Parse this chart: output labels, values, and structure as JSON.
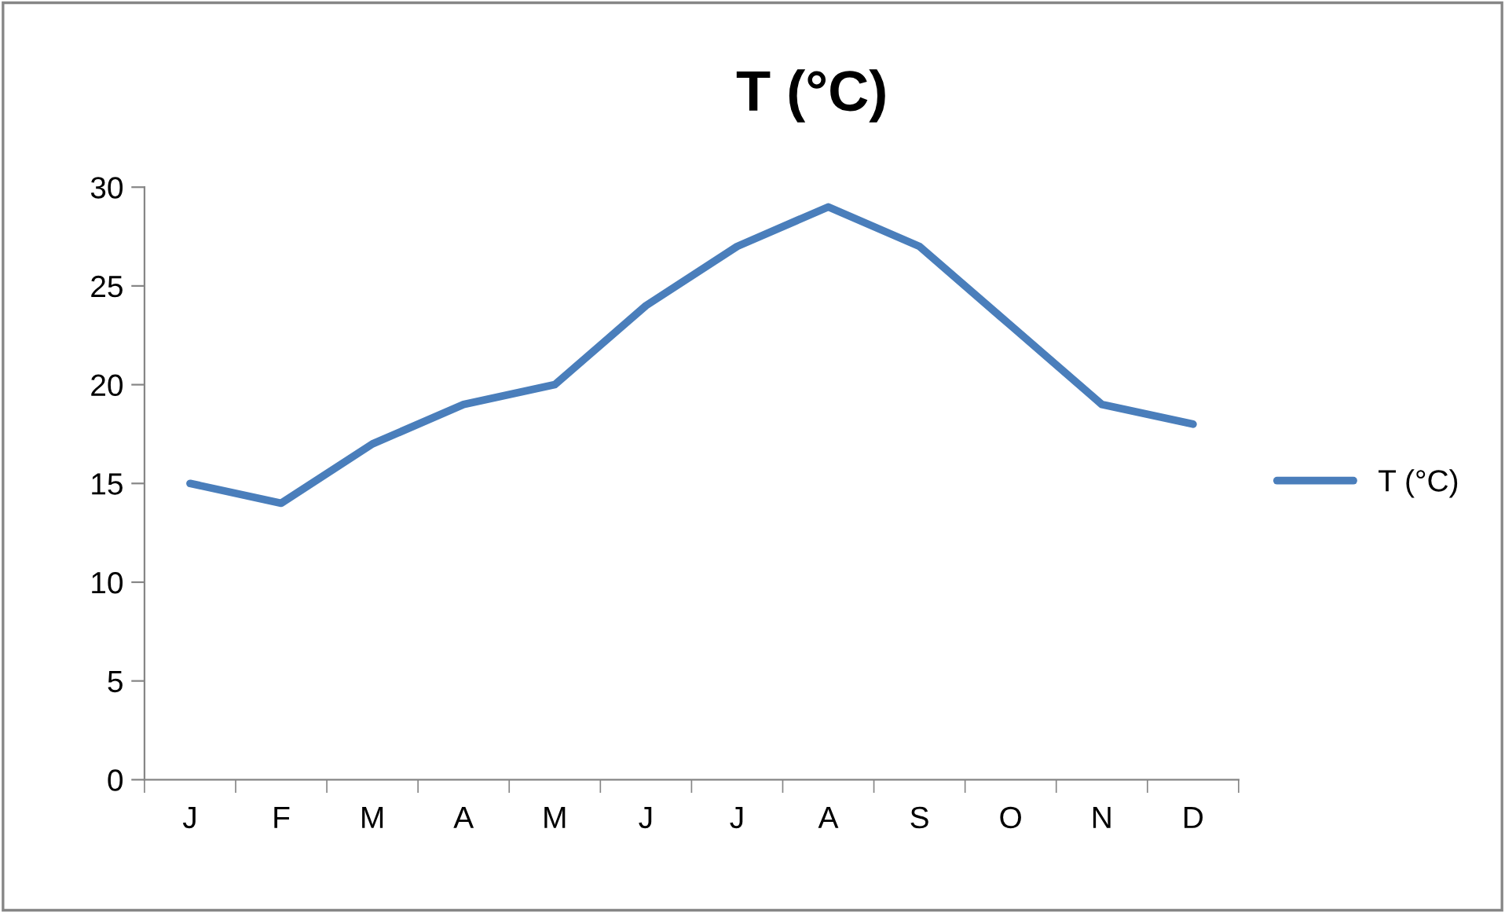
{
  "chart_data": {
    "type": "line",
    "title": "T (°C)",
    "categories": [
      "J",
      "F",
      "M",
      "A",
      "M",
      "J",
      "J",
      "A",
      "S",
      "O",
      "N",
      "D"
    ],
    "series": [
      {
        "name": "T (°C)",
        "color": "#4a7ebb",
        "values": [
          15,
          14,
          17,
          19,
          20,
          24,
          27,
          29,
          27,
          23,
          19,
          18
        ]
      }
    ],
    "ylim": [
      0,
      30
    ],
    "yticks": [
      0,
      5,
      10,
      15,
      20,
      25,
      30
    ],
    "grid": false,
    "legend": "right",
    "marker": "none",
    "line_style": "solid"
  }
}
